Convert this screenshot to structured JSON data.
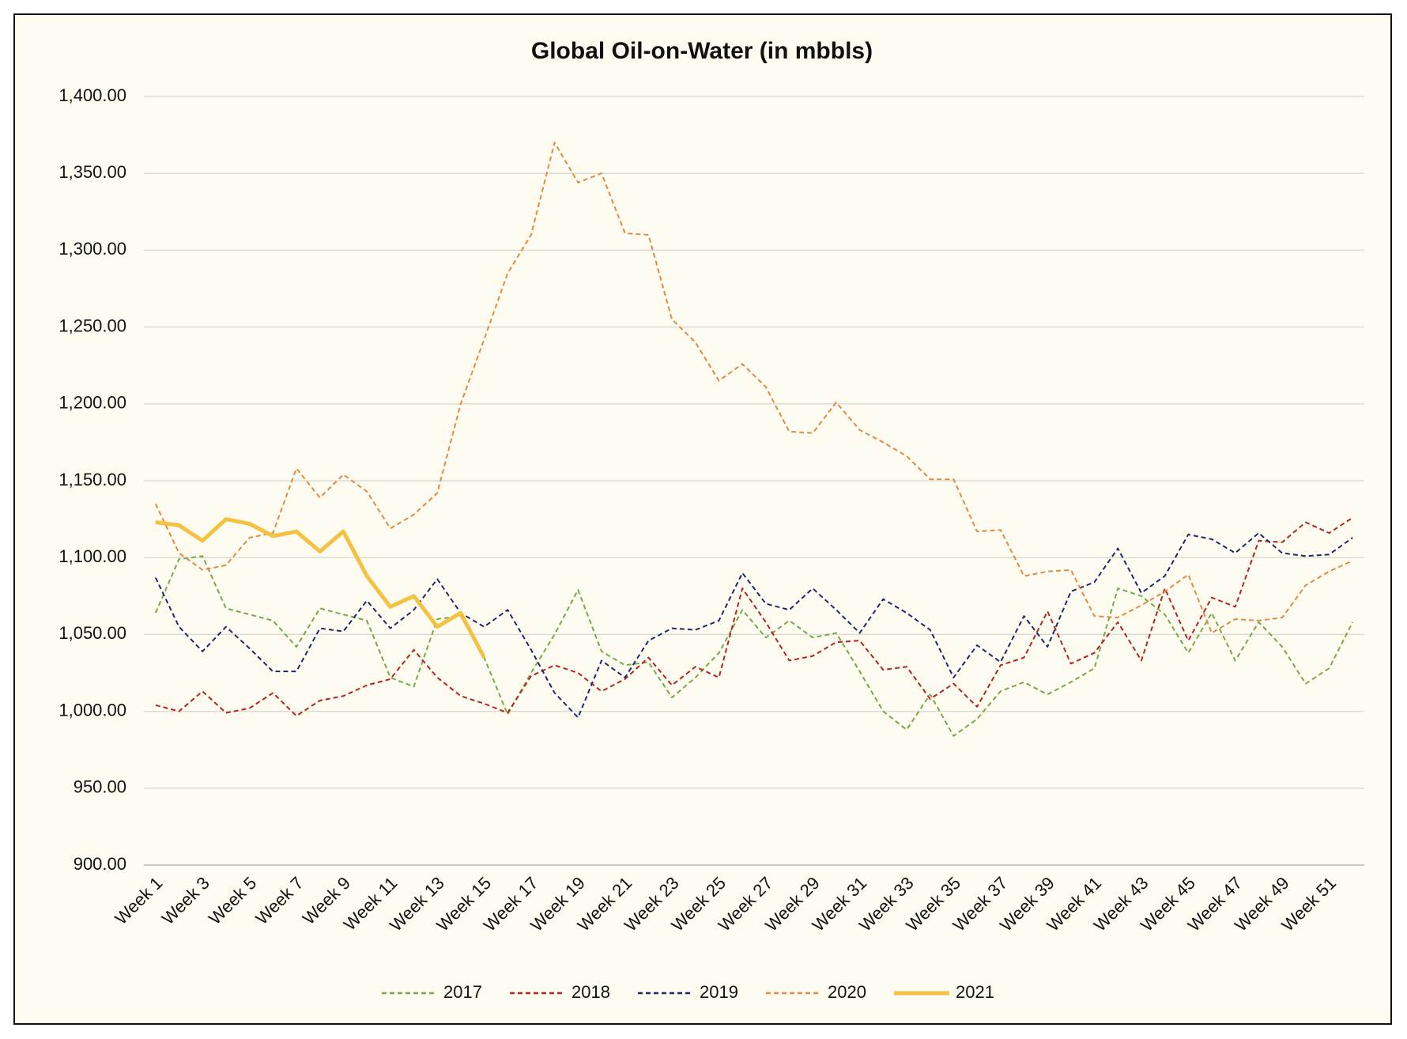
{
  "chart_data": {
    "type": "line",
    "title": "Global Oil-on-Water (in mbbls)",
    "categories": [
      "Week 1",
      null,
      "Week 3",
      null,
      "Week 5",
      null,
      "Week 7",
      null,
      "Week 9",
      null,
      "Week 11",
      null,
      "Week 13",
      null,
      "Week 15",
      null,
      "Week 17",
      null,
      "Week 19",
      null,
      "Week 21",
      null,
      "Week 23",
      null,
      "Week 25",
      null,
      "Week 27",
      null,
      "Week 29",
      null,
      "Week 31",
      null,
      "Week 33",
      null,
      "Week 35",
      null,
      "Week 37",
      null,
      "Week 39",
      null,
      "Week 41",
      null,
      "Week 43",
      null,
      "Week 45",
      null,
      "Week 47",
      null,
      "Week 49",
      null,
      "Week 51",
      null
    ],
    "series": [
      {
        "name": "2017",
        "color": "#77a84a",
        "line_style": "dashed",
        "values": [
          1064,
          1099,
          1101,
          1067,
          1063,
          1059,
          1042,
          1067,
          1063,
          1059,
          1022,
          1016,
          1060,
          1062,
          1035,
          998,
          1025,
          1050,
          1079,
          1039,
          1030,
          1032,
          1009,
          1022,
          1038,
          1066,
          1048,
          1059,
          1048,
          1051,
          1026,
          1000,
          988,
          1011,
          984,
          995,
          1013,
          1019,
          1011,
          1019,
          1028,
          1080,
          1075,
          1063,
          1038,
          1064,
          1033,
          1058,
          1042,
          1018,
          1028,
          1058
        ]
      },
      {
        "name": "2018",
        "color": "#b5231f",
        "line_style": "dashed",
        "values": [
          1004,
          1000,
          1013,
          999,
          1002,
          1012,
          997,
          1007,
          1010,
          1017,
          1021,
          1040,
          1022,
          1010,
          1005,
          999,
          1023,
          1030,
          1025,
          1013,
          1021,
          1035,
          1017,
          1029,
          1022,
          1080,
          1058,
          1033,
          1036,
          1045,
          1046,
          1027,
          1029,
          1008,
          1018,
          1003,
          1030,
          1035,
          1065,
          1031,
          1038,
          1058,
          1033,
          1080,
          1046,
          1074,
          1068,
          1111,
          1110,
          1123,
          1116,
          1126
        ]
      },
      {
        "name": "2019",
        "color": "#1c2a66",
        "line_style": "dashed",
        "values": [
          1087,
          1055,
          1039,
          1055,
          1041,
          1026,
          1026,
          1054,
          1052,
          1072,
          1054,
          1066,
          1086,
          1064,
          1055,
          1066,
          1040,
          1012,
          996,
          1033,
          1022,
          1046,
          1054,
          1053,
          1059,
          1090,
          1070,
          1066,
          1080,
          1066,
          1051,
          1073,
          1064,
          1053,
          1022,
          1043,
          1032,
          1062,
          1042,
          1078,
          1084,
          1106,
          1077,
          1088,
          1115,
          1112,
          1103,
          1116,
          1103,
          1101,
          1102,
          1113
        ]
      },
      {
        "name": "2020",
        "color": "#e08a45",
        "line_style": "dashed",
        "values": [
          1135,
          1103,
          1092,
          1095,
          1113,
          1116,
          1158,
          1139,
          1154,
          1143,
          1119,
          1128,
          1142,
          1200,
          1242,
          1285,
          1310,
          1370,
          1344,
          1350,
          1311,
          1310,
          1255,
          1240,
          1215,
          1226,
          1211,
          1182,
          1181,
          1201,
          1183,
          1175,
          1166,
          1151,
          1151,
          1117,
          1118,
          1088,
          1091,
          1092,
          1062,
          1061,
          1069,
          1078,
          1089,
          1051,
          1060,
          1059,
          1061,
          1082,
          1091,
          1098
        ]
      },
      {
        "name": "2021",
        "color": "#f4c243",
        "line_style": "solid",
        "values": [
          1123,
          1121,
          1111,
          1125,
          1122,
          1114,
          1117,
          1104,
          1117,
          1088,
          1068,
          1075,
          1055,
          1064,
          1035,
          null,
          null,
          null,
          null,
          null,
          null,
          null,
          null,
          null,
          null,
          null,
          null,
          null,
          null,
          null,
          null,
          null,
          null,
          null,
          null,
          null,
          null,
          null,
          null,
          null,
          null,
          null,
          null,
          null,
          null,
          null,
          null,
          null,
          null,
          null,
          null,
          null
        ]
      }
    ],
    "ylim": [
      900,
      1400
    ],
    "yticks": [
      {
        "value": 900,
        "label": "900.00"
      },
      {
        "value": 950,
        "label": "950.00"
      },
      {
        "value": 1000,
        "label": "1,000.00"
      },
      {
        "value": 1050,
        "label": "1,050.00"
      },
      {
        "value": 1100,
        "label": "1,100.00"
      },
      {
        "value": 1150,
        "label": "1,150.00"
      },
      {
        "value": 1200,
        "label": "1,200.00"
      },
      {
        "value": 1250,
        "label": "1,250.00"
      },
      {
        "value": 1300,
        "label": "1,300.00"
      },
      {
        "value": 1350,
        "label": "1,350.00"
      },
      {
        "value": 1400,
        "label": "1,400.00"
      }
    ],
    "grid": true,
    "legend": "bottom"
  }
}
